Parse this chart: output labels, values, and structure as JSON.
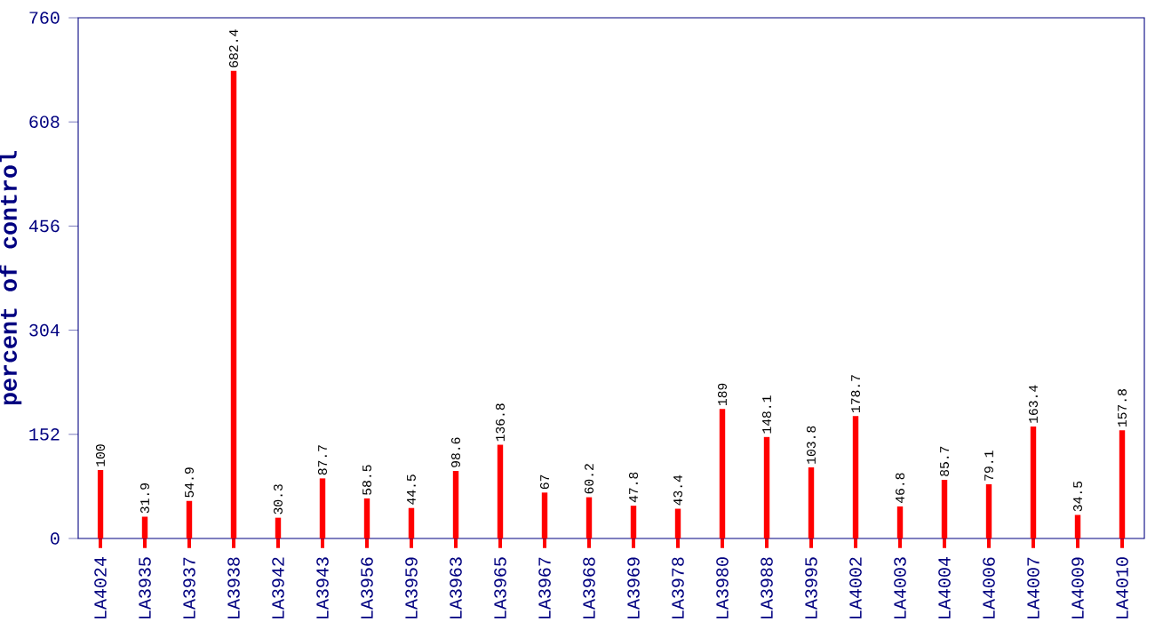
{
  "chart_data": {
    "type": "bar",
    "ylabel": "percent of control",
    "categories": [
      "LA4024",
      "LA3935",
      "LA3937",
      "LA3938",
      "LA3942",
      "LA3943",
      "LA3956",
      "LA3959",
      "LA3963",
      "LA3965",
      "LA3967",
      "LA3968",
      "LA3969",
      "LA3978",
      "LA3980",
      "LA3988",
      "LA3995",
      "LA4002",
      "LA4003",
      "LA4004",
      "LA4006",
      "LA4007",
      "LA4009",
      "LA4010"
    ],
    "values": [
      100,
      31.9,
      54.9,
      682.4,
      30.3,
      87.7,
      58.5,
      44.5,
      98.6,
      136.8,
      67,
      60.2,
      47.8,
      43.4,
      189,
      148.1,
      103.8,
      178.7,
      46.8,
      85.7,
      79.1,
      163.4,
      34.5,
      157.8
    ],
    "color": "#ff0000",
    "ylim": [
      0,
      760
    ],
    "yticks": [
      0,
      152,
      304,
      456,
      608,
      760
    ],
    "data_labels": true
  }
}
